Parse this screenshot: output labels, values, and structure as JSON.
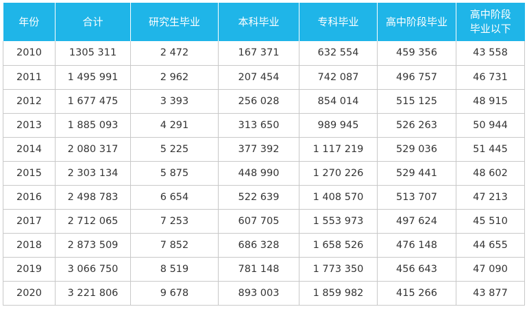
{
  "table": {
    "headers": [
      [
        "年份"
      ],
      [
        "合计"
      ],
      [
        "研究生毕业"
      ],
      [
        "本科毕业"
      ],
      [
        "专科毕业"
      ],
      [
        "高中阶段毕业"
      ],
      [
        "高中阶段",
        "毕业以下"
      ]
    ],
    "rows": [
      [
        "2010",
        "1305 311",
        "2 472",
        "167 371",
        "632 554",
        "459 356",
        "43 558"
      ],
      [
        "2011",
        "1 495 991",
        "2 962",
        "207 454",
        "742 087",
        "496 757",
        "46 731"
      ],
      [
        "2012",
        "1 677 475",
        "3 393",
        "256 028",
        "854 014",
        "515 125",
        "48 915"
      ],
      [
        "2013",
        "1 885 093",
        "4 291",
        "313 650",
        "989 945",
        "526 263",
        "50 944"
      ],
      [
        "2014",
        "2 080 317",
        "5 225",
        "377 392",
        "1 117 219",
        "529 036",
        "51 445"
      ],
      [
        "2015",
        "2 303 134",
        "5 875",
        "448 990",
        "1 270 226",
        "529 441",
        "48 602"
      ],
      [
        "2016",
        "2 498 783",
        "6 654",
        "522 639",
        "1 408 570",
        "513 707",
        "47 213"
      ],
      [
        "2017",
        "2 712 065",
        "7 253",
        "607 705",
        "1 553 973",
        "497 624",
        "45 510"
      ],
      [
        "2018",
        "2 873 509",
        "7 852",
        "686 328",
        "1 658 526",
        "476 148",
        "44 655"
      ],
      [
        "2019",
        "3 066 750",
        "8 519",
        "781 148",
        "1 773 350",
        "456 643",
        "47 090"
      ],
      [
        "2020",
        "3 221 806",
        "9 678",
        "893 003",
        "1 859 982",
        "415 266",
        "43 877"
      ]
    ]
  },
  "colors": {
    "header_bg": "#1fb5e8",
    "header_text": "#ffffff",
    "grid_line": "#c8c8c8",
    "cell_text": "#333333"
  }
}
